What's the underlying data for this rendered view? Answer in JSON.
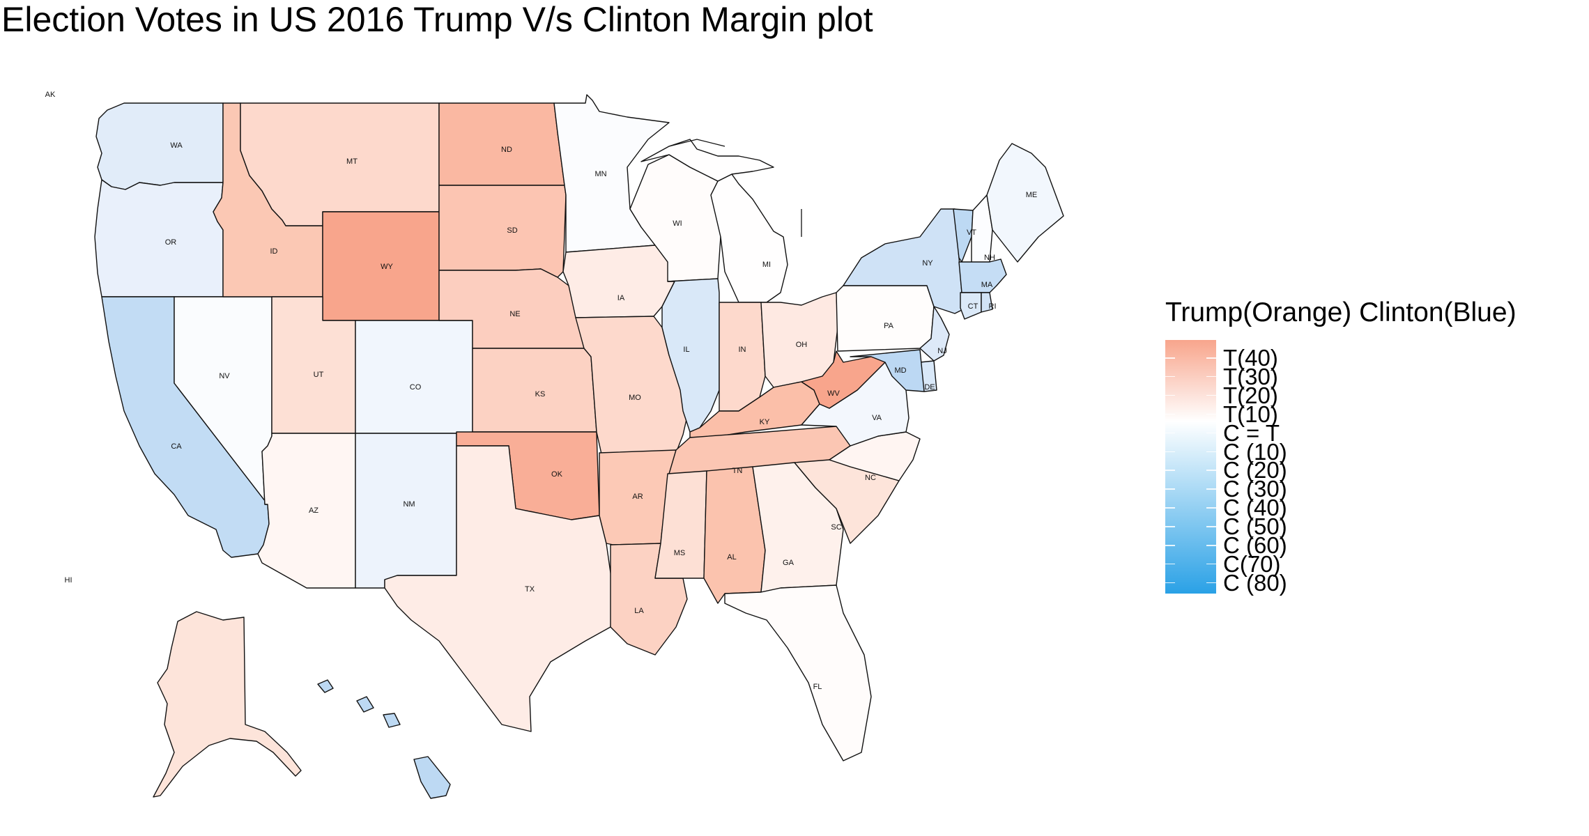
{
  "title": "Election Votes  in US 2016 Trump V/s Clinton Margin plot",
  "legend": {
    "title": "Trump(Orange) Clinton(Blue)",
    "gradient_top_color": "#f8a58c",
    "gradient_mid_color": "#ffffff",
    "gradient_bottom_color": "#2aa1e6",
    "labels": [
      "T(40)",
      "T(30)",
      "T(20)",
      "T(10)",
      "C = T",
      "C (10)",
      "C (20)",
      "C (30)",
      "C (40)",
      "C (50)",
      "C (60)",
      "C(70)",
      "C (80)"
    ]
  },
  "inset_labels": {
    "alaska": "AK",
    "hawaii": "HI"
  },
  "states": {
    "WA": {
      "label": "WA",
      "color": "#e1ecf9"
    },
    "OR": {
      "label": "OR",
      "color": "#e9f0fb"
    },
    "CA": {
      "label": "CA",
      "color": "#c2dcf4"
    },
    "ID": {
      "label": "ID",
      "color": "#fbc8b4"
    },
    "MT": {
      "label": "MT",
      "color": "#fdd9cc"
    },
    "WY": {
      "label": "WY",
      "color": "#f8a58c"
    },
    "NV": {
      "label": "NV",
      "color": "#fafcfe"
    },
    "UT": {
      "label": "UT",
      "color": "#fde0d5"
    },
    "CO": {
      "label": "CO",
      "color": "#f1f6fd"
    },
    "AZ": {
      "label": "AZ",
      "color": "#fff6f3"
    },
    "NM": {
      "label": "NM",
      "color": "#edf3fc"
    },
    "ND": {
      "label": "ND",
      "color": "#fab8a2"
    },
    "SD": {
      "label": "SD",
      "color": "#fcc5b2"
    },
    "NE": {
      "label": "NE",
      "color": "#fccebf"
    },
    "KS": {
      "label": "KS",
      "color": "#fcd2c3"
    },
    "OK": {
      "label": "OK",
      "color": "#f9ae97"
    },
    "TX": {
      "label": "TX",
      "color": "#feece6"
    },
    "MN": {
      "label": "MN",
      "color": "#fbfcfe"
    },
    "IA": {
      "label": "IA",
      "color": "#feece6"
    },
    "MO": {
      "label": "MO",
      "color": "#fdd9cc"
    },
    "AR": {
      "label": "AR",
      "color": "#fcc9b6"
    },
    "LA": {
      "label": "LA",
      "color": "#fcd2c3"
    },
    "WI": {
      "label": "WI",
      "color": "#fffcfb"
    },
    "IL": {
      "label": "IL",
      "color": "#d9e8f8"
    },
    "MI": {
      "label": "MI",
      "color": "#fffefe"
    },
    "IN": {
      "label": "IN",
      "color": "#fdd9cc"
    },
    "OH": {
      "label": "OH",
      "color": "#fee9e2"
    },
    "KY": {
      "label": "KY",
      "color": "#fbbfa9"
    },
    "TN": {
      "label": "TN",
      "color": "#fbc6b3"
    },
    "MS": {
      "label": "MS",
      "color": "#fde0d5"
    },
    "AL": {
      "label": "AL",
      "color": "#fbc3ae"
    },
    "GA": {
      "label": "GA",
      "color": "#fef1ec"
    },
    "FL": {
      "label": "FL",
      "color": "#fffcfb"
    },
    "SC": {
      "label": "SC",
      "color": "#fde4da"
    },
    "NC": {
      "label": "NC",
      "color": "#fff5f2"
    },
    "VA": {
      "label": "VA",
      "color": "#f3f7fd"
    },
    "WV": {
      "label": "WV",
      "color": "#f8a58c"
    },
    "PA": {
      "label": "PA",
      "color": "#fffdfc"
    },
    "NY": {
      "label": "NY",
      "color": "#cfe2f6"
    },
    "VT": {
      "label": "VT",
      "color": "#bdd9f3"
    },
    "NH": {
      "label": "NH",
      "color": "#fcfdff"
    },
    "ME": {
      "label": "ME",
      "color": "#f2f7fd"
    },
    "MA": {
      "label": "MA",
      "color": "#c5ddf5"
    },
    "CT": {
      "label": "CT",
      "color": "#dbe9f8"
    },
    "RI": {
      "label": "RI",
      "color": "#d1e3f6"
    },
    "NJ": {
      "label": "NJ",
      "color": "#dde9f8"
    },
    "DE": {
      "label": "DE",
      "color": "#d9e8f8"
    },
    "MD": {
      "label": "MD",
      "color": "#bcd8f3"
    },
    "AK": {
      "label": "",
      "color": "#fde4da"
    },
    "HI": {
      "label": "",
      "color": "#bdd9f3"
    }
  }
}
